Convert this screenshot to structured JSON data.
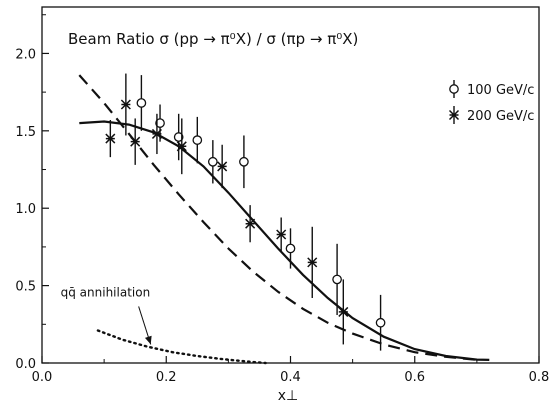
{
  "chart_data": {
    "type": "scatter",
    "title": "Beam Ratio  σ (pp → π⁰X) / σ (πp → π⁰X)",
    "xlabel": "x⊥",
    "ylabel": "",
    "xlim": [
      0.0,
      0.8
    ],
    "ylim": [
      0.0,
      2.3
    ],
    "x_ticks": [
      "0.0",
      "0.2",
      "0.4",
      "0.6",
      "0.8"
    ],
    "y_ticks": [
      "0.0",
      "0.5",
      "1.0",
      "1.5",
      "2.0"
    ],
    "grid": false,
    "legend_position": "top-right",
    "series": [
      {
        "name": "100 GeV/c",
        "marker": "open-circle",
        "points": [
          {
            "x": 0.16,
            "y": 1.68,
            "err": 0.18
          },
          {
            "x": 0.19,
            "y": 1.55,
            "err": 0.12
          },
          {
            "x": 0.22,
            "y": 1.46,
            "err": 0.15
          },
          {
            "x": 0.25,
            "y": 1.44,
            "err": 0.15
          },
          {
            "x": 0.275,
            "y": 1.3,
            "err": 0.14
          },
          {
            "x": 0.325,
            "y": 1.3,
            "err": 0.17
          },
          {
            "x": 0.4,
            "y": 0.74,
            "err": 0.13
          },
          {
            "x": 0.475,
            "y": 0.54,
            "err": 0.23
          },
          {
            "x": 0.545,
            "y": 0.26,
            "err": 0.18
          }
        ]
      },
      {
        "name": "200 GeV/c",
        "marker": "asterisk",
        "points": [
          {
            "x": 0.11,
            "y": 1.45,
            "err": 0.12
          },
          {
            "x": 0.135,
            "y": 1.67,
            "err": 0.2
          },
          {
            "x": 0.15,
            "y": 1.43,
            "err": 0.15
          },
          {
            "x": 0.185,
            "y": 1.48,
            "err": 0.13
          },
          {
            "x": 0.225,
            "y": 1.4,
            "err": 0.18
          },
          {
            "x": 0.29,
            "y": 1.27,
            "err": 0.14
          },
          {
            "x": 0.335,
            "y": 0.9,
            "err": 0.12
          },
          {
            "x": 0.385,
            "y": 0.83,
            "err": 0.11
          },
          {
            "x": 0.435,
            "y": 0.65,
            "err": 0.23
          },
          {
            "x": 0.485,
            "y": 0.33,
            "err": 0.21
          }
        ]
      }
    ],
    "curves": [
      {
        "style": "solid",
        "x": [
          0.06,
          0.1,
          0.14,
          0.18,
          0.22,
          0.26,
          0.3,
          0.34,
          0.38,
          0.42,
          0.46,
          0.5,
          0.55,
          0.6,
          0.65,
          0.7,
          0.72
        ],
        "y": [
          1.55,
          1.56,
          1.54,
          1.49,
          1.4,
          1.27,
          1.1,
          0.92,
          0.74,
          0.57,
          0.42,
          0.29,
          0.17,
          0.09,
          0.045,
          0.022,
          0.02
        ]
      },
      {
        "style": "dashed",
        "x": [
          0.06,
          0.1,
          0.14,
          0.18,
          0.22,
          0.26,
          0.3,
          0.34,
          0.38,
          0.42,
          0.46,
          0.5,
          0.55,
          0.6,
          0.65,
          0.7
        ],
        "y": [
          1.86,
          1.68,
          1.48,
          1.28,
          1.09,
          0.91,
          0.74,
          0.59,
          0.46,
          0.35,
          0.26,
          0.19,
          0.12,
          0.07,
          0.04,
          0.02
        ]
      },
      {
        "style": "dotted",
        "x": [
          0.09,
          0.13,
          0.17,
          0.21,
          0.25,
          0.29,
          0.33,
          0.36
        ],
        "y": [
          0.21,
          0.15,
          0.105,
          0.07,
          0.045,
          0.025,
          0.01,
          0.0
        ]
      }
    ],
    "annotations": [
      {
        "text": "qq̄  annihilation",
        "x": 0.03,
        "y": 0.43,
        "arrow_to": {
          "x": 0.175,
          "y": 0.12
        }
      }
    ]
  }
}
